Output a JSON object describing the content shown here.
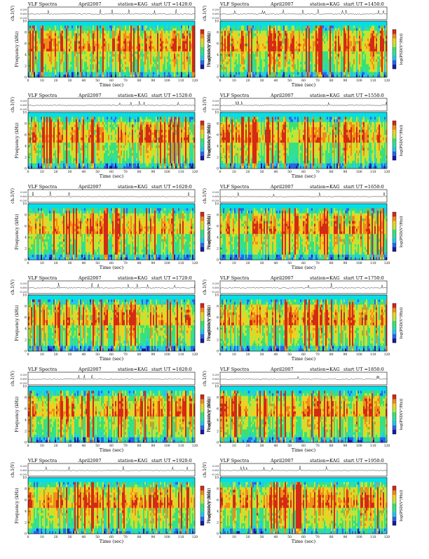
{
  "chart_data": [
    {
      "type": "heatmap",
      "label": "VLF Spectra",
      "date": "April2007",
      "station": "station=KAG",
      "start": "start UT =1420:0",
      "wave_ylabel": "ch.1(V)",
      "spec_ylabel": "Frequency (kHz)",
      "xlabel": "Time (sec)",
      "cbar_label": "log(PSD(V²/Hz))",
      "x_ticks": [
        "0",
        "10",
        "20",
        "30",
        "40",
        "50",
        "60",
        "70",
        "80",
        "90",
        "100",
        "110",
        "120"
      ],
      "y_ticks": [
        "0",
        "2",
        "4",
        "6",
        "8",
        "10"
      ],
      "wave_ticks": [
        "0.20",
        "0.00",
        "-0.20"
      ],
      "xlim": [
        0,
        120
      ],
      "ylim": [
        0,
        10
      ]
    },
    {
      "type": "heatmap",
      "label": "VLF Spectra",
      "date": "April2007",
      "station": "station=KAG",
      "start": "start UT =1450:0",
      "wave_ylabel": "ch.1(V)",
      "spec_ylabel": "Frequency (kHz)",
      "xlabel": "Time (sec)",
      "cbar_label": "log(PSD(V²/Hz))",
      "x_ticks": [
        "0",
        "10",
        "20",
        "30",
        "40",
        "50",
        "60",
        "70",
        "80",
        "90",
        "100",
        "110",
        "120"
      ],
      "y_ticks": [
        "0",
        "2",
        "4",
        "6",
        "8",
        "10"
      ],
      "wave_ticks": [
        "0.20",
        "0.00",
        "-0.20"
      ],
      "xlim": [
        0,
        120
      ],
      "ylim": [
        0,
        10
      ]
    },
    {
      "type": "heatmap",
      "label": "VLF Spectra",
      "date": "April2007",
      "station": "station=KAG",
      "start": "start UT =1520:0",
      "wave_ylabel": "ch.1(V)",
      "spec_ylabel": "Frequency (kHz)",
      "xlabel": "Time (sec)",
      "cbar_label": "log(PSD(V²/Hz))",
      "x_ticks": [
        "0",
        "10",
        "20",
        "30",
        "40",
        "50",
        "60",
        "70",
        "80",
        "90",
        "100",
        "110",
        "120"
      ],
      "y_ticks": [
        "0",
        "2",
        "4",
        "6",
        "8",
        "10"
      ],
      "wave_ticks": [
        "0.20",
        "0.00",
        "-0.20"
      ],
      "xlim": [
        0,
        120
      ],
      "ylim": [
        0,
        10
      ]
    },
    {
      "type": "heatmap",
      "label": "VLF Spectra",
      "date": "April2007",
      "station": "station=KAG",
      "start": "start UT =1550:0",
      "wave_ylabel": "ch.1(V)",
      "spec_ylabel": "Frequency (kHz)",
      "xlabel": "Time (sec)",
      "cbar_label": "log(PSD(V²/Hz))",
      "x_ticks": [
        "0",
        "10",
        "20",
        "30",
        "40",
        "50",
        "60",
        "70",
        "80",
        "90",
        "100",
        "110",
        "120"
      ],
      "y_ticks": [
        "0",
        "2",
        "4",
        "6",
        "8",
        "10"
      ],
      "wave_ticks": [
        "0.20",
        "0.00",
        "-0.20"
      ],
      "xlim": [
        0,
        120
      ],
      "ylim": [
        0,
        10
      ]
    },
    {
      "type": "heatmap",
      "label": "VLF Spectra",
      "date": "April2007",
      "station": "station=KAG",
      "start": "start UT =1620:0",
      "wave_ylabel": "ch.1(V)",
      "spec_ylabel": "Frequency (kHz)",
      "xlabel": "Time (sec)",
      "cbar_label": "log(PSD(V²/Hz))",
      "x_ticks": [
        "0",
        "10",
        "20",
        "30",
        "40",
        "50",
        "60",
        "70",
        "80",
        "90",
        "100",
        "110",
        "120"
      ],
      "y_ticks": [
        "0",
        "2",
        "4",
        "6",
        "8",
        "10"
      ],
      "wave_ticks": [
        "0.20",
        "0.00",
        "-0.20"
      ],
      "xlim": [
        0,
        120
      ],
      "ylim": [
        0,
        10
      ]
    },
    {
      "type": "heatmap",
      "label": "VLF Spectra",
      "date": "April2007",
      "station": "station=KAG",
      "start": "start UT =1650:0",
      "wave_ylabel": "ch.1(V)",
      "spec_ylabel": "Frequency (kHz)",
      "xlabel": "Time (sec)",
      "cbar_label": "log(PSD(V²/Hz))",
      "x_ticks": [
        "0",
        "10",
        "20",
        "30",
        "40",
        "50",
        "60",
        "70",
        "80",
        "90",
        "100",
        "110",
        "120"
      ],
      "y_ticks": [
        "0",
        "2",
        "4",
        "6",
        "8",
        "10"
      ],
      "wave_ticks": [
        "0.20",
        "0.00",
        "-0.20"
      ],
      "xlim": [
        0,
        120
      ],
      "ylim": [
        0,
        10
      ]
    },
    {
      "type": "heatmap",
      "label": "VLF Spectra",
      "date": "April2007",
      "station": "station=KAG",
      "start": "start UT =1720:0",
      "wave_ylabel": "ch.1(V)",
      "spec_ylabel": "Frequency (kHz)",
      "xlabel": "Time (sec)",
      "cbar_label": "log(PSD(V²/Hz))",
      "x_ticks": [
        "0",
        "10",
        "20",
        "30",
        "40",
        "50",
        "60",
        "70",
        "80",
        "90",
        "100",
        "110",
        "120"
      ],
      "y_ticks": [
        "0",
        "2",
        "4",
        "6",
        "8",
        "10"
      ],
      "wave_ticks": [
        "0.20",
        "0.00",
        "-0.20"
      ],
      "xlim": [
        0,
        120
      ],
      "ylim": [
        0,
        10
      ]
    },
    {
      "type": "heatmap",
      "label": "VLF Spectra",
      "date": "April2007",
      "station": "station=KAG",
      "start": "start UT =1750:0",
      "wave_ylabel": "ch.1(V)",
      "spec_ylabel": "Frequency (kHz)",
      "xlabel": "Time (sec)",
      "cbar_label": "log(PSD(V²/Hz))",
      "x_ticks": [
        "0",
        "10",
        "20",
        "30",
        "40",
        "50",
        "60",
        "70",
        "80",
        "90",
        "100",
        "110",
        "120"
      ],
      "y_ticks": [
        "0",
        "2",
        "4",
        "6",
        "8",
        "10"
      ],
      "wave_ticks": [
        "0.20",
        "0.00",
        "-0.20"
      ],
      "xlim": [
        0,
        120
      ],
      "ylim": [
        0,
        10
      ]
    },
    {
      "type": "heatmap",
      "label": "VLF Spectra",
      "date": "April2007",
      "station": "station=KAG",
      "start": "start UT =1820:0",
      "wave_ylabel": "ch.1(V)",
      "spec_ylabel": "Frequency (kHz)",
      "xlabel": "Time (sec)",
      "cbar_label": "log(PSD(V²/Hz))",
      "x_ticks": [
        "0",
        "10",
        "20",
        "30",
        "40",
        "50",
        "60",
        "70",
        "80",
        "90",
        "100",
        "110",
        "120"
      ],
      "y_ticks": [
        "0",
        "2",
        "4",
        "6",
        "8",
        "10"
      ],
      "wave_ticks": [
        "0.20",
        "0.00",
        "-0.20"
      ],
      "xlim": [
        0,
        120
      ],
      "ylim": [
        0,
        10
      ]
    },
    {
      "type": "heatmap",
      "label": "VLF Spectra",
      "date": "April2007",
      "station": "station=KAG",
      "start": "start UT =1850:0",
      "wave_ylabel": "ch.1(V)",
      "spec_ylabel": "Frequency (kHz)",
      "xlabel": "Time (sec)",
      "cbar_label": "log(PSD(V²/Hz))",
      "x_ticks": [
        "0",
        "10",
        "20",
        "30",
        "40",
        "50",
        "60",
        "70",
        "80",
        "90",
        "100",
        "110",
        "120"
      ],
      "y_ticks": [
        "0",
        "2",
        "4",
        "6",
        "8",
        "10"
      ],
      "wave_ticks": [
        "0.20",
        "0.00",
        "-0.20"
      ],
      "xlim": [
        0,
        120
      ],
      "ylim": [
        0,
        10
      ]
    },
    {
      "type": "heatmap",
      "label": "VLF Spectra",
      "date": "April2007",
      "station": "station=KAG",
      "start": "start UT =1920:0",
      "wave_ylabel": "ch.1(V)",
      "spec_ylabel": "Frequency (kHz)",
      "xlabel": "Time (sec)",
      "cbar_label": "log(PSD(V²/Hz))",
      "x_ticks": [
        "0",
        "10",
        "20",
        "30",
        "40",
        "50",
        "60",
        "70",
        "80",
        "90",
        "100",
        "110",
        "120"
      ],
      "y_ticks": [
        "0",
        "2",
        "4",
        "6",
        "8",
        "10"
      ],
      "wave_ticks": [
        "0.20",
        "0.00",
        "-0.20"
      ],
      "xlim": [
        0,
        120
      ],
      "ylim": [
        0,
        10
      ]
    },
    {
      "type": "heatmap",
      "label": "VLF Spectra",
      "date": "April2007",
      "station": "station=KAG",
      "start": "start UT =1950:0",
      "wave_ylabel": "ch.1(V)",
      "spec_ylabel": "Frequency (kHz)",
      "xlabel": "Time (sec)",
      "cbar_label": "log(PSD(V²/Hz))",
      "x_ticks": [
        "0",
        "10",
        "20",
        "30",
        "40",
        "50",
        "60",
        "70",
        "80",
        "90",
        "100",
        "110",
        "120"
      ],
      "y_ticks": [
        "0",
        "2",
        "4",
        "6",
        "8",
        "10"
      ],
      "wave_ticks": [
        "0.20",
        "0.00",
        "-0.20"
      ],
      "xlim": [
        0,
        120
      ],
      "ylim": [
        0,
        10
      ]
    }
  ],
  "colormap": [
    "#1a1aa0",
    "#2a66e8",
    "#22c7ee",
    "#2fe0a0",
    "#3ce070",
    "#b8e838",
    "#f2d020",
    "#f08c18",
    "#d42a14"
  ],
  "background_color": "#00e0e8"
}
